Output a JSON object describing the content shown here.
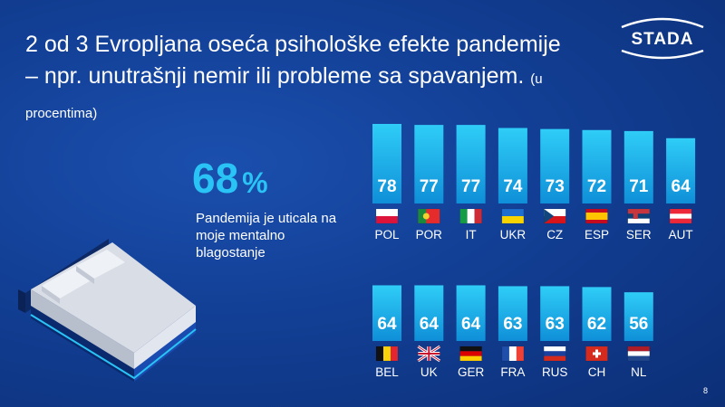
{
  "slide": {
    "title": "2 od 3 Evropljana oseća psihološke efekte pandemije – npr. unutrašnji nemir ili probleme sa spavanjem.",
    "title_unit": "(u procentima)",
    "logo_text": "STADA",
    "highlight_value": "68",
    "highlight_unit": "%",
    "highlight_text": "Pandemija je uticala na moje mentalno blagostanje",
    "page_number": "8"
  },
  "colors": {
    "background": "#123f95",
    "bar_top": "#2fcdf7",
    "bar_bottom": "#0f8fd8",
    "accent": "#29c4f5"
  },
  "chart_data": {
    "type": "bar",
    "title": "",
    "xlabel": "",
    "ylabel": "",
    "rows": [
      {
        "categories": [
          "POL",
          "POR",
          "IT",
          "UKR",
          "CZ",
          "ESP",
          "SER",
          "AUT"
        ],
        "flags": [
          "poland",
          "portugal",
          "italy",
          "ukraine",
          "czechia",
          "spain",
          "serbia",
          "austria"
        ],
        "values": [
          78,
          77,
          77,
          74,
          73,
          72,
          71,
          64
        ]
      },
      {
        "categories": [
          "BEL",
          "UK",
          "GER",
          "FRA",
          "RUS",
          "CH",
          "NL"
        ],
        "flags": [
          "belgium",
          "united-kingdom",
          "germany",
          "france",
          "russia",
          "switzerland",
          "netherlands"
        ],
        "values": [
          64,
          64,
          64,
          63,
          63,
          62,
          56
        ]
      }
    ]
  }
}
